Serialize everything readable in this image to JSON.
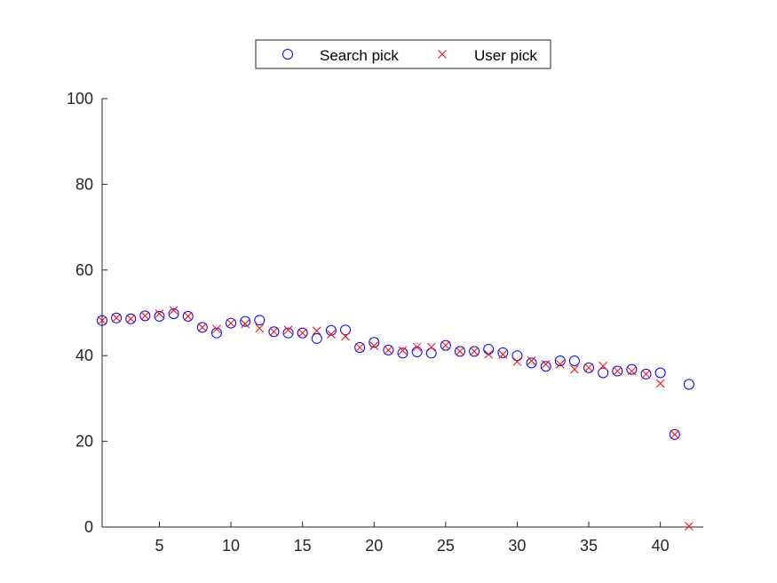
{
  "chart_data": {
    "type": "scatter",
    "xlim": [
      1,
      43
    ],
    "ylim": [
      0,
      100
    ],
    "x_ticks": [
      "5",
      "10",
      "15",
      "20",
      "25",
      "30",
      "35",
      "40"
    ],
    "y_ticks": [
      "0",
      "20",
      "40",
      "60",
      "80",
      "100"
    ],
    "grid": false,
    "legend_placement": "top-center",
    "x": [
      1,
      2,
      3,
      4,
      5,
      6,
      7,
      8,
      9,
      10,
      11,
      12,
      13,
      14,
      15,
      16,
      17,
      18,
      19,
      20,
      21,
      22,
      23,
      24,
      25,
      26,
      27,
      28,
      29,
      30,
      31,
      32,
      33,
      34,
      35,
      36,
      37,
      38,
      39,
      40,
      41,
      42
    ],
    "series": [
      {
        "name": "Search pick",
        "marker": "circle",
        "color": "#0000ff",
        "values": [
          48.2,
          48.8,
          48.6,
          49.3,
          49.2,
          49.8,
          49.2,
          46.6,
          45.3,
          47.6,
          48.0,
          48.3,
          45.6,
          45.3,
          45.3,
          44.0,
          45.9,
          46.0,
          41.9,
          43.1,
          41.3,
          40.6,
          40.9,
          40.6,
          42.4,
          41.0,
          41.0,
          41.5,
          40.7,
          40.0,
          38.3,
          37.5,
          38.8,
          38.8,
          37.2,
          36.0,
          36.4,
          36.8,
          35.7,
          36.0,
          21.6,
          33.3
        ]
      },
      {
        "name": "User pick",
        "marker": "x",
        "color": "#ff0000",
        "values": [
          48.2,
          48.8,
          48.6,
          49.3,
          49.8,
          50.6,
          49.2,
          46.6,
          46.2,
          47.6,
          47.4,
          46.4,
          45.6,
          46.0,
          45.3,
          45.8,
          45.0,
          44.5,
          41.9,
          42.3,
          41.3,
          41.2,
          42.0,
          42.0,
          42.4,
          41.0,
          41.0,
          40.3,
          40.3,
          38.6,
          38.8,
          38.0,
          38.0,
          36.8,
          37.2,
          37.6,
          36.4,
          36.4,
          35.7,
          33.5,
          21.6,
          0.2
        ]
      }
    ]
  }
}
